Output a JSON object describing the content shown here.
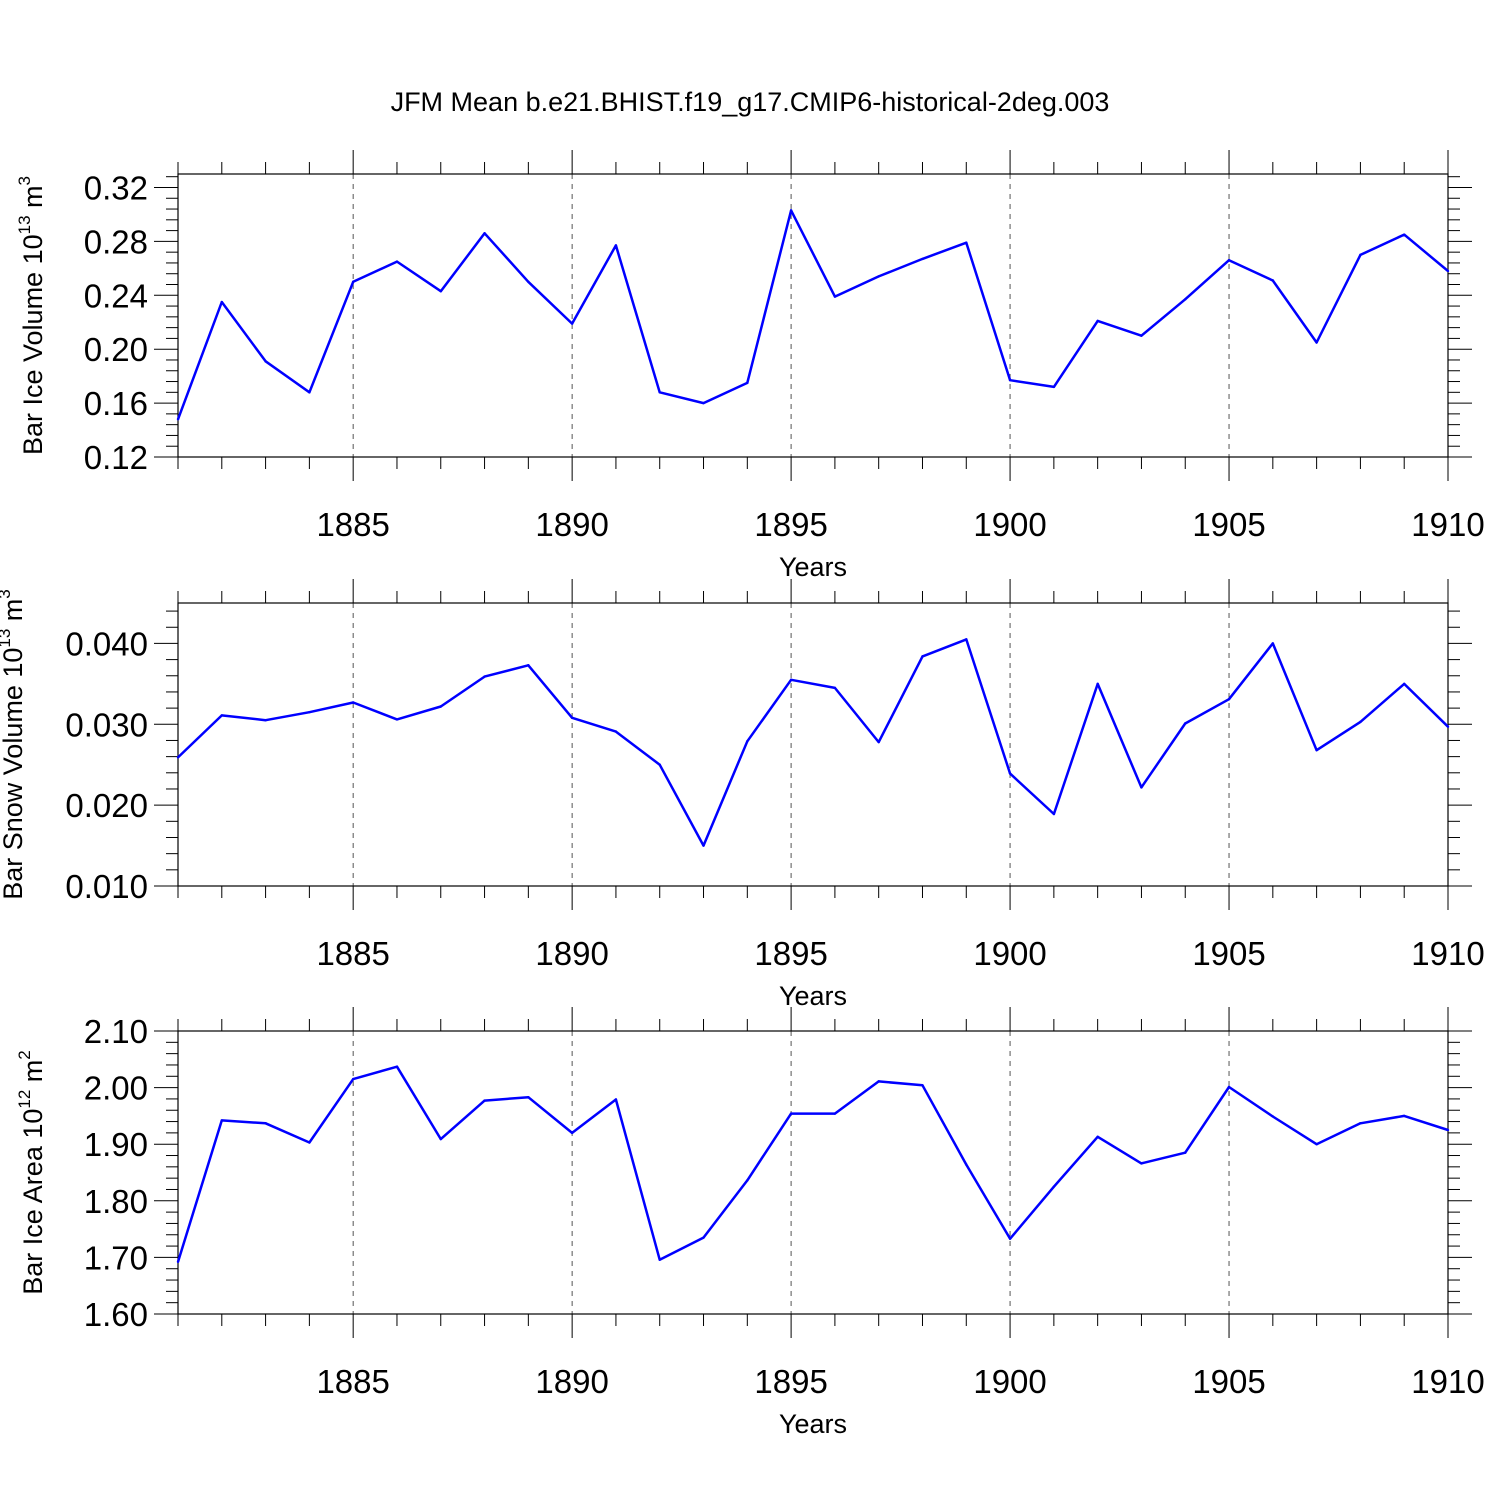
{
  "title": "JFM Mean b.e21.BHIST.f19_g17.CMIP6-historical-2deg.003",
  "chart_data": [
    {
      "type": "line",
      "xlabel": "Years",
      "ylabel_prefix": "Bar Ice Volume 10",
      "ylabel_exp": "13",
      "ylabel_unit": " m",
      "ylabel_unit_exp": "3",
      "xlim": [
        1881,
        1910
      ],
      "ylim": [
        0.12,
        0.33
      ],
      "yticks": [
        0.12,
        0.16,
        0.2,
        0.24,
        0.28,
        0.32
      ],
      "ytick_labels": [
        "0.12",
        "0.16",
        "0.20",
        "0.24",
        "0.28",
        "0.32"
      ],
      "xticks": [
        1885,
        1890,
        1895,
        1900,
        1905,
        1910
      ],
      "xtick_labels": [
        "1885",
        "1890",
        "1895",
        "1900",
        "1905",
        "1910"
      ],
      "grid": "vertical dashed at major x ticks",
      "line_color": "#0000ff",
      "x": [
        1881,
        1882,
        1883,
        1884,
        1885,
        1886,
        1887,
        1888,
        1889,
        1890,
        1891,
        1892,
        1893,
        1894,
        1895,
        1896,
        1897,
        1898,
        1899,
        1900,
        1901,
        1902,
        1903,
        1904,
        1905,
        1906,
        1907,
        1908,
        1909,
        1910
      ],
      "values": [
        0.148,
        0.235,
        0.191,
        0.168,
        0.25,
        0.265,
        0.243,
        0.286,
        0.25,
        0.219,
        0.277,
        0.168,
        0.16,
        0.175,
        0.303,
        0.239,
        0.254,
        0.267,
        0.279,
        0.177,
        0.172,
        0.221,
        0.21,
        0.237,
        0.266,
        0.251,
        0.205,
        0.27,
        0.285,
        0.258
      ]
    },
    {
      "type": "line",
      "xlabel": "Years",
      "ylabel_prefix": "Bar Snow Volume 10",
      "ylabel_exp": "13",
      "ylabel_unit": " m",
      "ylabel_unit_exp": "3",
      "xlim": [
        1881,
        1910
      ],
      "ylim": [
        0.01,
        0.045
      ],
      "yticks": [
        0.01,
        0.02,
        0.03,
        0.04
      ],
      "ytick_labels": [
        "0.010",
        "0.020",
        "0.030",
        "0.040"
      ],
      "xticks": [
        1885,
        1890,
        1895,
        1900,
        1905,
        1910
      ],
      "xtick_labels": [
        "1885",
        "1890",
        "1895",
        "1900",
        "1905",
        "1910"
      ],
      "grid": "vertical dashed at major x ticks",
      "line_color": "#0000ff",
      "x": [
        1881,
        1882,
        1883,
        1884,
        1885,
        1886,
        1887,
        1888,
        1889,
        1890,
        1891,
        1892,
        1893,
        1894,
        1895,
        1896,
        1897,
        1898,
        1899,
        1900,
        1901,
        1902,
        1903,
        1904,
        1905,
        1906,
        1907,
        1908,
        1909,
        1910
      ],
      "values": [
        0.0259,
        0.0311,
        0.0305,
        0.0315,
        0.0327,
        0.0306,
        0.0322,
        0.0359,
        0.0373,
        0.0308,
        0.0291,
        0.025,
        0.015,
        0.0279,
        0.0355,
        0.0345,
        0.0278,
        0.0384,
        0.0405,
        0.0239,
        0.0189,
        0.035,
        0.0222,
        0.0301,
        0.0331,
        0.04,
        0.0268,
        0.0303,
        0.035,
        0.0297
      ]
    },
    {
      "type": "line",
      "xlabel": "Years",
      "ylabel_prefix": "Bar Ice Area 10",
      "ylabel_exp": "12",
      "ylabel_unit": " m",
      "ylabel_unit_exp": "2",
      "xlim": [
        1881,
        1910
      ],
      "ylim": [
        1.6,
        2.1
      ],
      "yticks": [
        1.6,
        1.7,
        1.8,
        1.9,
        2.0,
        2.1
      ],
      "ytick_labels": [
        "1.60",
        "1.70",
        "1.80",
        "1.90",
        "2.00",
        "2.10"
      ],
      "xticks": [
        1885,
        1890,
        1895,
        1900,
        1905,
        1910
      ],
      "xtick_labels": [
        "1885",
        "1890",
        "1895",
        "1900",
        "1905",
        "1910"
      ],
      "grid": "vertical dashed at major x ticks",
      "line_color": "#0000ff",
      "x": [
        1881,
        1882,
        1883,
        1884,
        1885,
        1886,
        1887,
        1888,
        1889,
        1890,
        1891,
        1892,
        1893,
        1894,
        1895,
        1896,
        1897,
        1898,
        1899,
        1900,
        1901,
        1902,
        1903,
        1904,
        1905,
        1906,
        1907,
        1908,
        1909,
        1910
      ],
      "values": [
        1.692,
        1.942,
        1.937,
        1.903,
        2.015,
        2.037,
        1.909,
        1.977,
        1.983,
        1.92,
        1.979,
        1.696,
        1.735,
        1.836,
        1.954,
        1.954,
        2.011,
        2.004,
        1.864,
        1.733,
        1.825,
        1.913,
        1.866,
        1.885,
        2.001,
        1.949,
        1.9,
        1.937,
        1.95,
        1.925
      ]
    }
  ]
}
